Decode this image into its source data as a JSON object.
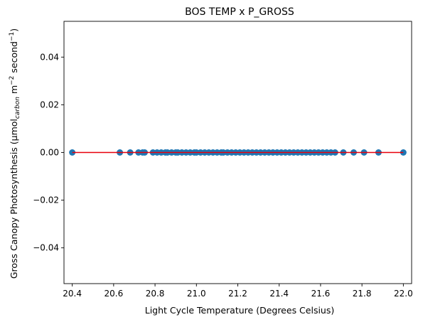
{
  "chart_data": {
    "type": "scatter",
    "title": "BOS TEMP x P_GROSS",
    "xlabel": "Light Cycle Temperature (Degrees Celsius)",
    "ylabel": {
      "prefix": "Gross Canopy Photosynthesis (µmol",
      "subscript": "carbon",
      "mid": " m",
      "sup1": "−2",
      "mid2": " second",
      "sup2": "−1",
      "suffix": ")"
    },
    "xlim": [
      20.36,
      22.04
    ],
    "ylim": [
      -0.055,
      0.055
    ],
    "xticks": [
      {
        "value": 20.4,
        "label": "20.4"
      },
      {
        "value": 20.6,
        "label": "20.6"
      },
      {
        "value": 20.8,
        "label": "20.8"
      },
      {
        "value": 21.0,
        "label": "21.0"
      },
      {
        "value": 21.2,
        "label": "21.2"
      },
      {
        "value": 21.4,
        "label": "21.4"
      },
      {
        "value": 21.6,
        "label": "21.6"
      },
      {
        "value": 21.8,
        "label": "21.8"
      },
      {
        "value": 22.0,
        "label": "22.0"
      }
    ],
    "yticks": [
      {
        "value": 0.04,
        "label": "0.04"
      },
      {
        "value": 0.02,
        "label": "0.02"
      },
      {
        "value": 0.0,
        "label": "0.00"
      },
      {
        "value": -0.02,
        "label": "−0.02"
      },
      {
        "value": -0.04,
        "label": "−0.04"
      }
    ],
    "series": [
      {
        "marker_color": "#1f77b4",
        "x": [
          20.4,
          20.63,
          20.68,
          20.72,
          20.74,
          20.75,
          20.79,
          20.81,
          20.83,
          20.85,
          20.86,
          20.88,
          20.9,
          20.91,
          20.93,
          20.95,
          20.97,
          20.99,
          21.0,
          21.02,
          21.04,
          21.06,
          21.08,
          21.1,
          21.12,
          21.13,
          21.15,
          21.17,
          21.19,
          21.21,
          21.23,
          21.25,
          21.27,
          21.29,
          21.31,
          21.33,
          21.35,
          21.37,
          21.39,
          21.41,
          21.43,
          21.45,
          21.47,
          21.49,
          21.51,
          21.53,
          21.55,
          21.57,
          21.59,
          21.61,
          21.63,
          21.65,
          21.67,
          21.71,
          21.76,
          21.81,
          21.88,
          22.0
        ],
        "y": [
          0,
          0,
          0,
          0,
          0,
          0,
          0,
          0,
          0,
          0,
          0,
          0,
          0,
          0,
          0,
          0,
          0,
          0,
          0,
          0,
          0,
          0,
          0,
          0,
          0,
          0,
          0,
          0,
          0,
          0,
          0,
          0,
          0,
          0,
          0,
          0,
          0,
          0,
          0,
          0,
          0,
          0,
          0,
          0,
          0,
          0,
          0,
          0,
          0,
          0,
          0,
          0,
          0,
          0,
          0,
          0,
          0,
          0
        ]
      }
    ],
    "fit_line": {
      "color": "#e8000b",
      "x": [
        20.4,
        22.0
      ],
      "y": [
        0,
        0
      ]
    },
    "grid": false,
    "legend": "none"
  }
}
